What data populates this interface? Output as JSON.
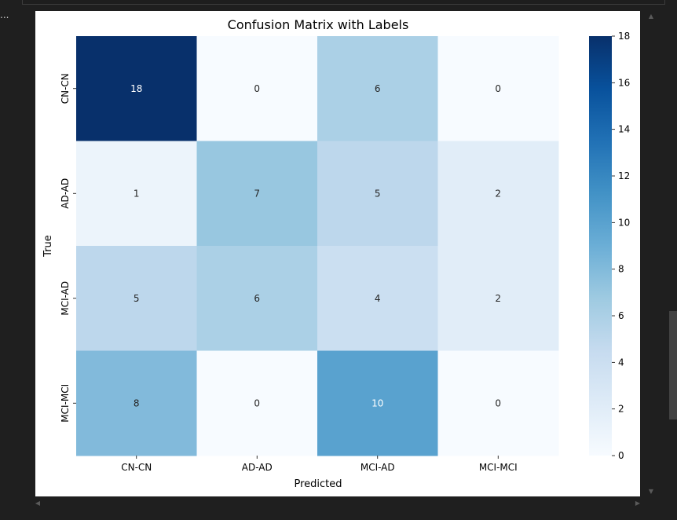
{
  "cell_menu": "...",
  "chart_data": {
    "type": "heatmap",
    "title": "Confusion Matrix with Labels",
    "xlabel": "Predicted",
    "ylabel": "True",
    "x_categories": [
      "CN-CN",
      "AD-AD",
      "MCI-AD",
      "MCI-MCI"
    ],
    "y_categories": [
      "CN-CN",
      "AD-AD",
      "MCI-AD",
      "MCI-MCI"
    ],
    "values": [
      [
        18,
        0,
        6,
        0
      ],
      [
        1,
        7,
        5,
        2
      ],
      [
        5,
        6,
        4,
        2
      ],
      [
        8,
        0,
        10,
        0
      ]
    ],
    "colormap": "Blues",
    "vmin": 0,
    "vmax": 18,
    "colorbar_ticks": [
      0,
      2,
      4,
      6,
      8,
      10,
      12,
      14,
      16,
      18
    ],
    "grid": false
  },
  "colors": {
    "background": "#1f1f1f",
    "plot_background": "#ffffff",
    "scrollbar_thumb": "#424242"
  }
}
